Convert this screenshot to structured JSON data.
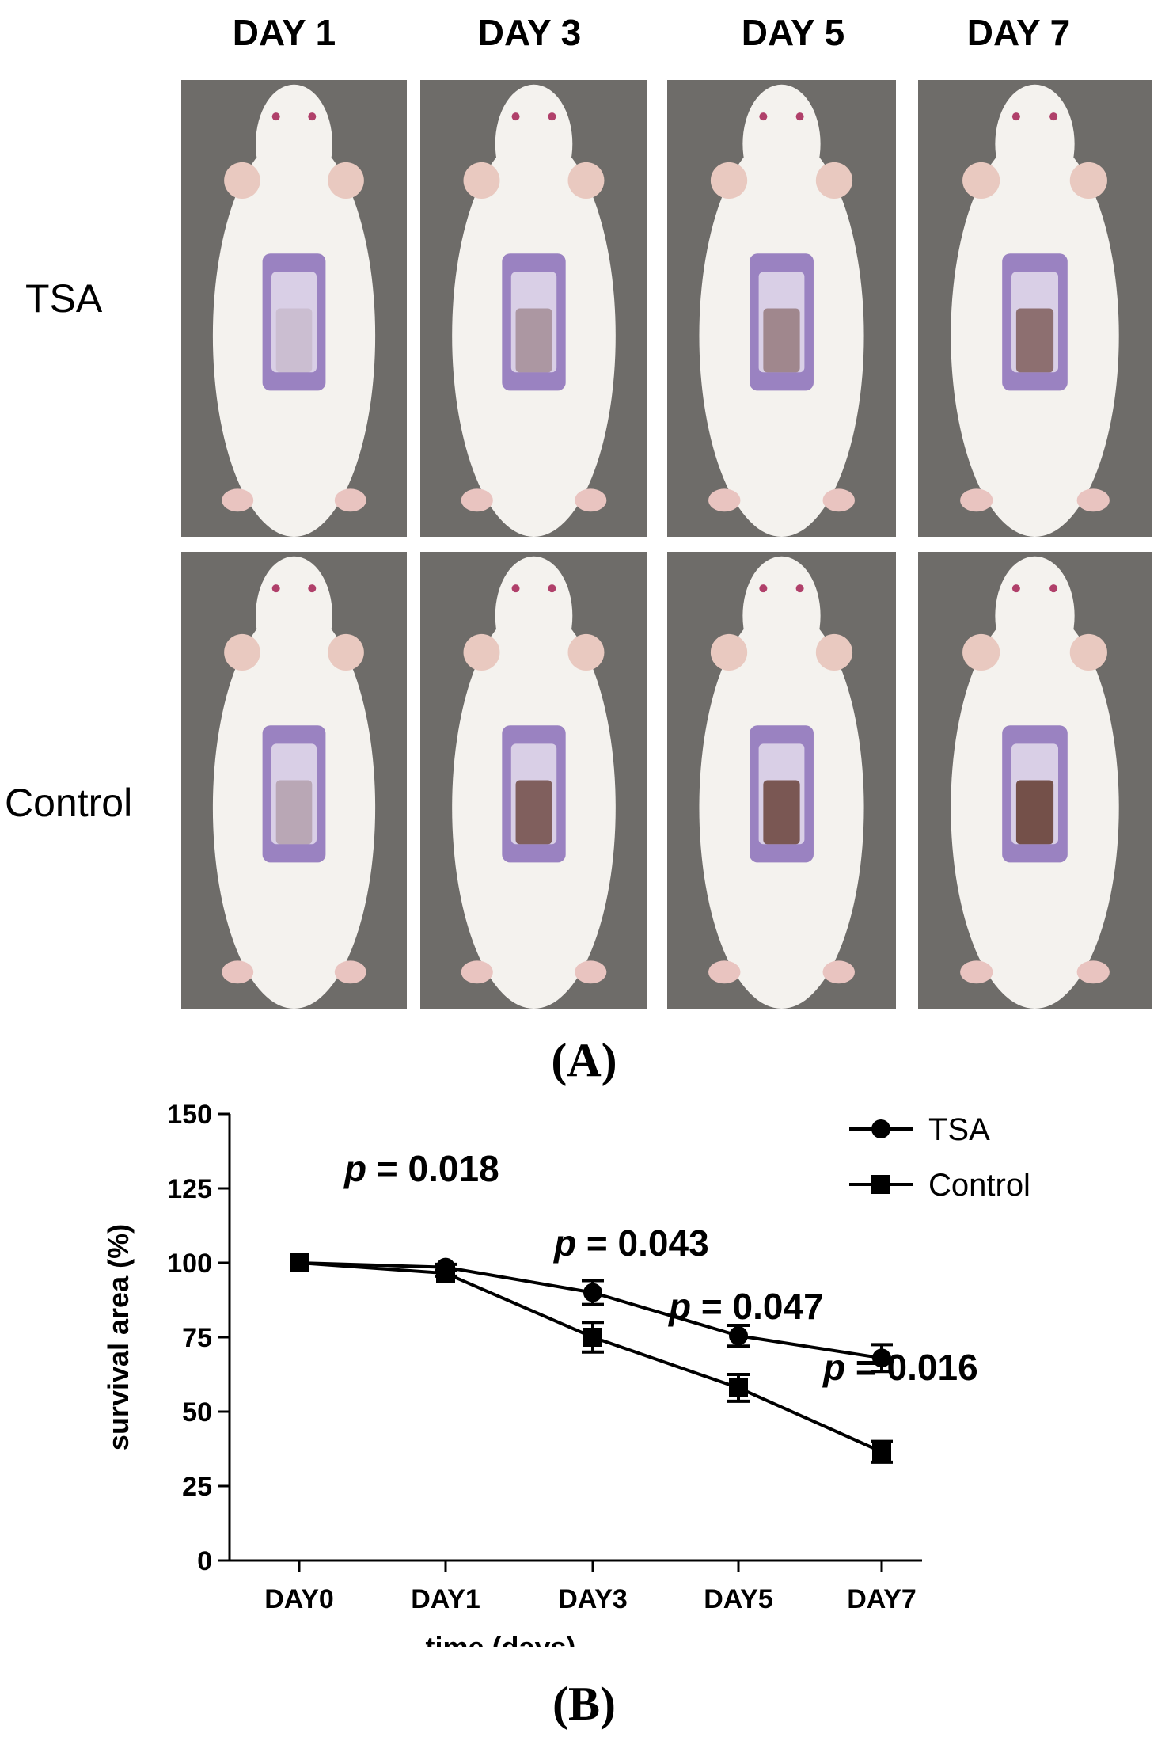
{
  "panel_a": {
    "label": "(A)",
    "columns": [
      "DAY 1",
      "DAY 3",
      "DAY 5",
      "DAY 7"
    ],
    "rows": [
      "TSA",
      "Control"
    ],
    "wound_color": "#8a6fb8",
    "fur_color": "#f4f2ee",
    "background_color": "#6e6c69"
  },
  "panel_b": {
    "label": "(B)"
  },
  "chart_data": {
    "type": "line",
    "categories": [
      "DAY0",
      "DAY1",
      "DAY3",
      "DAY5",
      "DAY7"
    ],
    "xlabel": "time (days)",
    "ylabel": "survival area (%)",
    "ylim": [
      0,
      150
    ],
    "yticks": [
      0,
      25,
      50,
      75,
      100,
      125,
      150
    ],
    "grid": false,
    "legend_position": "top-right",
    "series": [
      {
        "name": "TSA",
        "marker": "circle",
        "values": [
          100,
          98.5,
          90,
          75.5,
          68
        ],
        "errors": [
          0,
          1,
          4,
          3.5,
          4.5
        ]
      },
      {
        "name": "Control",
        "marker": "square",
        "values": [
          100,
          96.5,
          75,
          58,
          36.5
        ],
        "errors": [
          0,
          1,
          5,
          4.5,
          3.5
        ]
      }
    ],
    "annotations": [
      {
        "p_label": "p",
        "text": " = 0.018"
      },
      {
        "p_label": "p",
        "text": " = 0.043"
      },
      {
        "p_label": "p",
        "text": " = 0.047"
      },
      {
        "p_label": "p",
        "text": " = 0.016"
      }
    ]
  }
}
